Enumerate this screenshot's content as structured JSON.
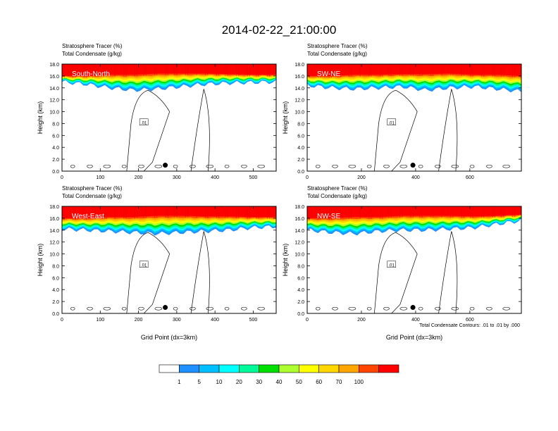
{
  "figure": {
    "title": "2014-02-22_21:00:00",
    "footnote": "Total Condensate Contours: .01 to .01 by .000",
    "contour_label": ".01"
  },
  "colorbar": {
    "levels": [
      "1",
      "5",
      "10",
      "20",
      "30",
      "40",
      "50",
      "60",
      "70",
      "100"
    ],
    "colors": [
      "#ffffff",
      "#1e90ff",
      "#00bfff",
      "#00ffff",
      "#00fa9a",
      "#00e000",
      "#adff2f",
      "#ffff00",
      "#ffd700",
      "#ffa500",
      "#ff4500",
      "#ff0000"
    ]
  },
  "chart_data": [
    {
      "type": "contour",
      "panel": "South-North",
      "title_line1": "Stratosphere Tracer   (%)",
      "title_line2": "Total Condensate   (g/kg)",
      "ylabel": "Height (km)",
      "xlabel": "",
      "xlim": [
        0,
        560
      ],
      "ylim": [
        0,
        18
      ],
      "xticks": [
        "0",
        "100",
        "200",
        "300",
        "400",
        "500"
      ],
      "xtick_values": [
        0,
        100,
        200,
        300,
        400,
        500
      ],
      "yticks": [
        "0.0",
        "2.0",
        "4.0",
        "6.0",
        "8.0",
        "10.0",
        "12.0",
        "14.0",
        "16.0",
        "18.0"
      ],
      "marker": {
        "x": 270,
        "y": 1.0
      },
      "tracer_base_km": [
        15.0,
        14.6,
        14.0,
        13.6,
        13.8,
        14.2,
        14.6,
        14.8,
        14.9,
        15.0
      ],
      "red_base_km": [
        16.0,
        16.0,
        16.2,
        16.2,
        16.4,
        16.4,
        16.4,
        16.3,
        16.2,
        16.2
      ]
    },
    {
      "type": "contour",
      "panel": "SW-NE",
      "title_line1": "Stratosphere Tracer   (%)",
      "title_line2": "Total Condensate   (g/kg)",
      "ylabel": "Height (km)",
      "xlabel": "",
      "xlim": [
        0,
        790
      ],
      "ylim": [
        0,
        18
      ],
      "xticks": [
        "0",
        "200",
        "400",
        "600"
      ],
      "xtick_values": [
        0,
        200,
        400,
        600
      ],
      "yticks": [
        "0.0",
        "2.0",
        "4.0",
        "6.0",
        "8.0",
        "10.0",
        "12.0",
        "14.0",
        "16.0",
        "18.0"
      ],
      "marker": {
        "x": 390,
        "y": 1.0
      },
      "tracer_base_km": [
        14.4,
        14.0,
        13.8,
        14.0,
        14.2,
        13.6,
        14.0,
        14.2,
        13.8,
        13.4
      ],
      "red_base_km": [
        16.0,
        16.0,
        16.2,
        16.2,
        16.3,
        16.3,
        16.4,
        16.2,
        16.2,
        16.0
      ]
    },
    {
      "type": "contour",
      "panel": "West-East",
      "title_line1": "Stratosphere Tracer   (%)",
      "title_line2": "Total Condensate   (g/kg)",
      "ylabel": "Height (km)",
      "xlabel": "Grid Point (dx=3km)",
      "xlim": [
        0,
        560
      ],
      "ylim": [
        0,
        18
      ],
      "xticks": [
        "0",
        "100",
        "200",
        "300",
        "400",
        "500"
      ],
      "xtick_values": [
        0,
        100,
        200,
        300,
        400,
        500
      ],
      "yticks": [
        "0.0",
        "2.0",
        "4.0",
        "6.0",
        "8.0",
        "10.0",
        "12.0",
        "14.0",
        "16.0",
        "18.0"
      ],
      "marker": {
        "x": 270,
        "y": 1.0
      },
      "tracer_base_km": [
        14.2,
        14.0,
        13.8,
        13.6,
        13.4,
        13.6,
        13.8,
        14.0,
        14.4,
        14.6
      ],
      "red_base_km": [
        16.0,
        16.0,
        16.2,
        16.2,
        16.4,
        16.4,
        16.3,
        16.3,
        16.2,
        16.2
      ]
    },
    {
      "type": "contour",
      "panel": "NW-SE",
      "title_line1": "Stratosphere Tracer   (%)",
      "title_line2": "Total Condensate   (g/kg)",
      "ylabel": "Height (km)",
      "xlabel": "Grid Point (dx=3km)",
      "xlim": [
        0,
        790
      ],
      "ylim": [
        0,
        18
      ],
      "xticks": [
        "0",
        "200",
        "400",
        "600"
      ],
      "xtick_values": [
        0,
        200,
        400,
        600
      ],
      "yticks": [
        "0.0",
        "2.0",
        "4.0",
        "6.0",
        "8.0",
        "10.0",
        "12.0",
        "14.0",
        "16.0",
        "18.0"
      ],
      "marker": {
        "x": 390,
        "y": 1.0
      },
      "tracer_base_km": [
        14.0,
        13.6,
        13.4,
        13.8,
        14.0,
        14.0,
        14.2,
        14.4,
        15.0,
        15.6
      ],
      "red_base_km": [
        16.0,
        16.0,
        16.2,
        16.2,
        16.4,
        16.4,
        16.4,
        16.3,
        16.4,
        16.6
      ]
    }
  ]
}
